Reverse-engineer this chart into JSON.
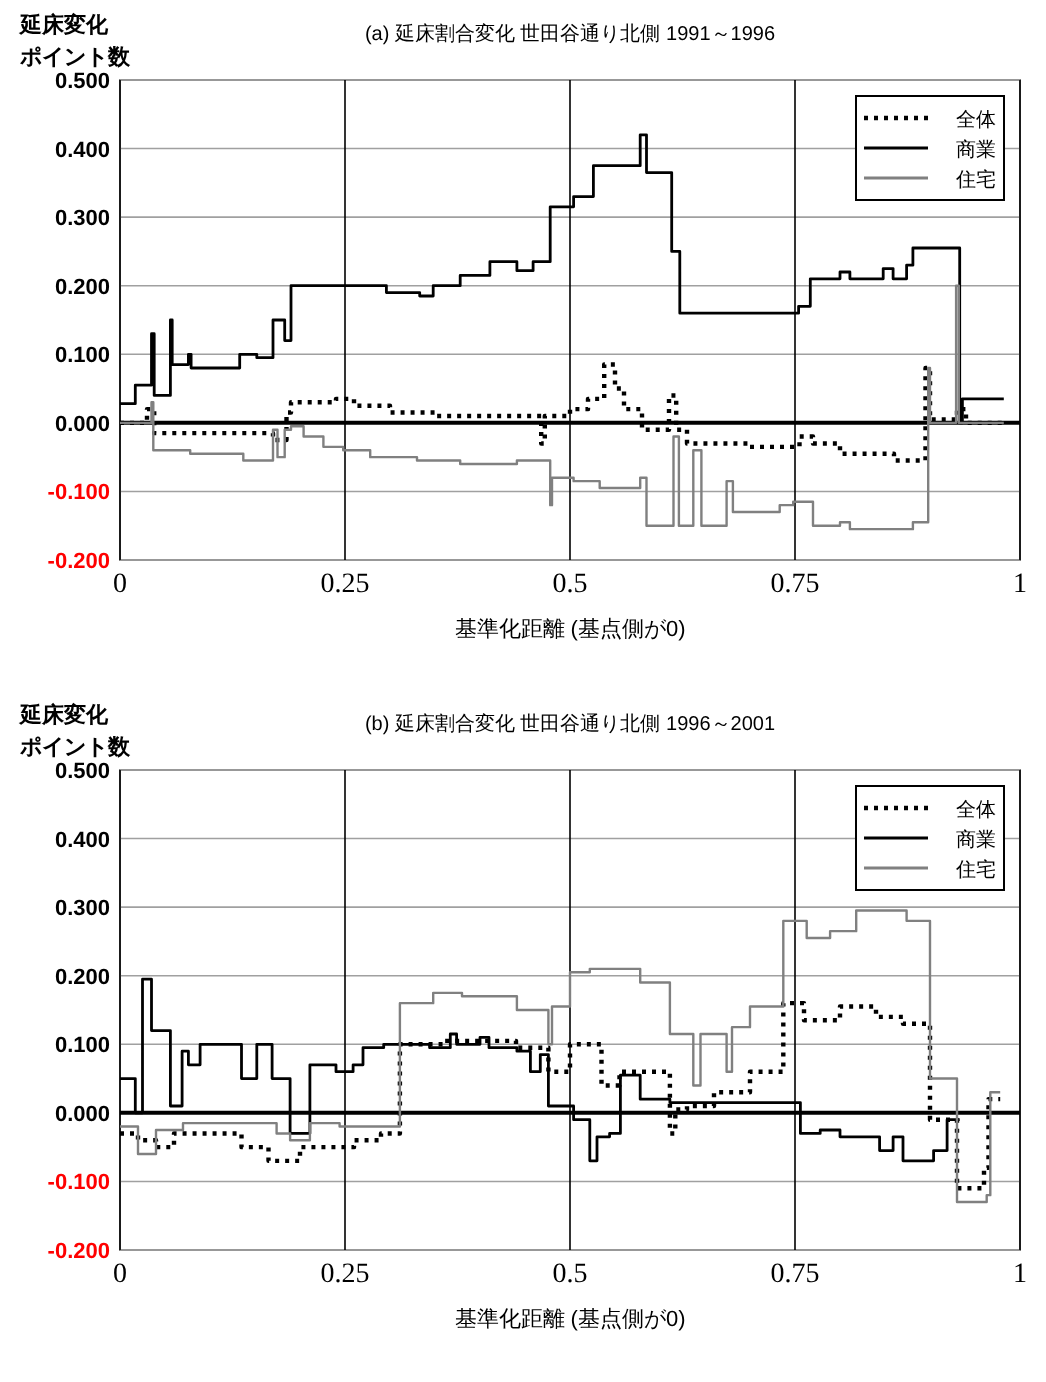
{
  "chart_data": [
    {
      "type": "step",
      "title": "(a) 延床割合変化 世田谷通り北側 1991～1996",
      "ylabel": "延床変化ポイント数",
      "xlabel": "基準化距離 (基点側が0)",
      "xlim": [
        0,
        1
      ],
      "xticks": [
        0,
        0.25,
        0.5,
        0.75,
        1
      ],
      "ylim": [
        -0.2,
        0.5
      ],
      "yticks": [
        {
          "value": -0.2,
          "label": "-0.200"
        },
        {
          "value": -0.1,
          "label": "-0.100"
        },
        {
          "value": 0,
          "label": "0.000"
        },
        {
          "value": 0.1,
          "label": "0.100"
        },
        {
          "value": 0.2,
          "label": "0.200"
        },
        {
          "value": 0.3,
          "label": "0.300"
        },
        {
          "value": 0.4,
          "label": "0.400"
        },
        {
          "value": 0.5,
          "label": "0.500"
        }
      ],
      "grid": true,
      "legend": "top right",
      "ref_lines": [
        {
          "axis": "y",
          "value": 0,
          "color": "#000000"
        }
      ],
      "series": [
        {
          "name": "全体",
          "color": "#000000",
          "line_style": "dotted",
          "x": [
            0,
            0.03,
            0.038,
            0.17,
            0.185,
            0.19,
            0.24,
            0.26,
            0.3,
            0.35,
            0.468,
            0.472,
            0.5,
            0.52,
            0.538,
            0.55,
            0.56,
            0.58,
            0.61,
            0.618,
            0.63,
            0.7,
            0.755,
            0.77,
            0.8,
            0.86,
            0.895,
            0.9,
            0.93,
            0.94,
            0.982
          ],
          "values": [
            0,
            0.02,
            -0.015,
            -0.025,
            0.015,
            0.03,
            0.035,
            0.025,
            0.015,
            0.01,
            -0.03,
            0.01,
            0.02,
            0.035,
            0.085,
            0.05,
            0.02,
            -0.01,
            0.04,
            -0.01,
            -0.03,
            -0.035,
            -0.02,
            -0.03,
            -0.045,
            -0.055,
            0.08,
            0.005,
            0.02,
            0,
            0
          ]
        },
        {
          "name": "商業",
          "color": "#000000",
          "line_style": "solid",
          "x": [
            0,
            0.017,
            0.035,
            0.038,
            0.056,
            0.058,
            0.076,
            0.079,
            0.133,
            0.152,
            0.17,
            0.183,
            0.19,
            0.296,
            0.333,
            0.348,
            0.378,
            0.411,
            0.441,
            0.459,
            0.478,
            0.504,
            0.526,
            0.578,
            0.585,
            0.613,
            0.622,
            0.754,
            0.767,
            0.8,
            0.811,
            0.848,
            0.859,
            0.874,
            0.881,
            0.933,
            0.936,
            0.982
          ],
          "values": [
            0.028,
            0.055,
            0.13,
            0.04,
            0.15,
            0.085,
            0.1,
            0.08,
            0.1,
            0.095,
            0.15,
            0.12,
            0.2,
            0.19,
            0.185,
            0.2,
            0.215,
            0.235,
            0.222,
            0.235,
            0.315,
            0.33,
            0.375,
            0.42,
            0.365,
            0.25,
            0.16,
            0.17,
            0.21,
            0.22,
            0.21,
            0.225,
            0.21,
            0.23,
            0.255,
            0,
            0.035,
            0.035
          ]
        },
        {
          "name": "住宅",
          "color": "#808080",
          "line_style": "solid",
          "x": [
            0,
            0.035,
            0.037,
            0.078,
            0.137,
            0.17,
            0.175,
            0.183,
            0.19,
            0.204,
            0.226,
            0.248,
            0.278,
            0.33,
            0.378,
            0.441,
            0.478,
            0.48,
            0.504,
            0.533,
            0.578,
            0.585,
            0.615,
            0.621,
            0.637,
            0.646,
            0.674,
            0.681,
            0.733,
            0.748,
            0.77,
            0.8,
            0.811,
            0.881,
            0.898,
            0.9,
            0.929,
            0.932,
            0.982
          ],
          "values": [
            0,
            0.03,
            -0.04,
            -0.045,
            -0.055,
            -0.01,
            -0.05,
            -0.01,
            -0.005,
            -0.02,
            -0.035,
            -0.04,
            -0.05,
            -0.055,
            -0.06,
            -0.055,
            -0.12,
            -0.08,
            -0.085,
            -0.095,
            -0.08,
            -0.15,
            -0.02,
            -0.15,
            -0.04,
            -0.15,
            -0.085,
            -0.13,
            -0.12,
            -0.115,
            -0.15,
            -0.145,
            -0.155,
            -0.145,
            0.08,
            0,
            0.2,
            0,
            0
          ]
        }
      ]
    },
    {
      "type": "step",
      "title": "(b) 延床割合変化 世田谷通り北側 1996～2001",
      "ylabel": "延床変化ポイント数",
      "xlabel": "基準化距離 (基点側が0)",
      "xlim": [
        0,
        1
      ],
      "xticks": [
        0,
        0.25,
        0.5,
        0.75,
        1
      ],
      "ylim": [
        -0.2,
        0.5
      ],
      "yticks": [
        {
          "value": -0.2,
          "label": "-0.200"
        },
        {
          "value": -0.1,
          "label": "-0.100"
        },
        {
          "value": 0,
          "label": "0.000"
        },
        {
          "value": 0.1,
          "label": "0.100"
        },
        {
          "value": 0.2,
          "label": "0.200"
        },
        {
          "value": 0.3,
          "label": "0.300"
        },
        {
          "value": 0.4,
          "label": "0.400"
        },
        {
          "value": 0.5,
          "label": "0.500"
        }
      ],
      "grid": true,
      "legend": "top right",
      "ref_lines": [
        {
          "axis": "y",
          "value": 0,
          "color": "#000000"
        }
      ],
      "series": [
        {
          "name": "全体",
          "color": "#000000",
          "line_style": "dotted",
          "x": [
            0,
            0.02,
            0.04,
            0.06,
            0.135,
            0.165,
            0.2,
            0.26,
            0.29,
            0.311,
            0.36,
            0.44,
            0.476,
            0.5,
            0.535,
            0.555,
            0.611,
            0.617,
            0.63,
            0.66,
            0.7,
            0.737,
            0.76,
            0.8,
            0.84,
            0.87,
            0.9,
            0.93,
            0.96,
            0.965,
            0.978
          ],
          "values": [
            -0.03,
            -0.04,
            -0.05,
            -0.03,
            -0.05,
            -0.07,
            -0.05,
            -0.04,
            -0.03,
            0.1,
            0.105,
            0.095,
            0.06,
            0.1,
            0.04,
            0.06,
            -0.03,
            0.005,
            0.01,
            0.03,
            0.06,
            0.16,
            0.135,
            0.155,
            0.14,
            0.13,
            -0.01,
            -0.11,
            -0.08,
            0.02,
            0.02
          ]
        },
        {
          "name": "商業",
          "color": "#000000",
          "line_style": "solid",
          "x": [
            0,
            0.017,
            0.025,
            0.035,
            0.056,
            0.069,
            0.076,
            0.089,
            0.135,
            0.152,
            0.169,
            0.189,
            0.211,
            0.24,
            0.259,
            0.27,
            0.293,
            0.344,
            0.367,
            0.374,
            0.4,
            0.41,
            0.441,
            0.456,
            0.467,
            0.476,
            0.504,
            0.522,
            0.53,
            0.544,
            0.556,
            0.578,
            0.611,
            0.756,
            0.778,
            0.8,
            0.844,
            0.859,
            0.87,
            0.904,
            0.919,
            0.933
          ],
          "values": [
            0.05,
            0,
            0.195,
            0.12,
            0.01,
            0.09,
            0.07,
            0.1,
            0.05,
            0.1,
            0.05,
            -0.03,
            0.07,
            0.06,
            0.07,
            0.095,
            0.1,
            0.095,
            0.115,
            0.1,
            0.11,
            0.095,
            0.09,
            0.06,
            0.085,
            0.01,
            -0.01,
            -0.07,
            -0.035,
            -0.03,
            0.055,
            0.02,
            0.015,
            -0.03,
            -0.025,
            -0.035,
            -0.055,
            -0.035,
            -0.07,
            -0.055,
            -0.01,
            -0.01
          ]
        },
        {
          "name": "住宅",
          "color": "#808080",
          "line_style": "solid",
          "x": [
            0,
            0.02,
            0.04,
            0.07,
            0.174,
            0.189,
            0.211,
            0.244,
            0.311,
            0.348,
            0.38,
            0.441,
            0.476,
            0.48,
            0.5,
            0.522,
            0.578,
            0.611,
            0.637,
            0.645,
            0.674,
            0.68,
            0.7,
            0.737,
            0.763,
            0.789,
            0.818,
            0.874,
            0.9,
            0.93,
            0.963,
            0.967,
            0.978
          ],
          "values": [
            -0.02,
            -0.06,
            -0.025,
            -0.015,
            -0.03,
            -0.04,
            -0.015,
            -0.02,
            0.16,
            0.175,
            0.17,
            0.15,
            0.1,
            0.155,
            0.205,
            0.21,
            0.19,
            0.115,
            0.04,
            0.115,
            0.06,
            0.125,
            0.155,
            0.28,
            0.255,
            0.265,
            0.295,
            0.28,
            0.05,
            -0.13,
            -0.12,
            0.03,
            0.03
          ]
        }
      ]
    }
  ]
}
